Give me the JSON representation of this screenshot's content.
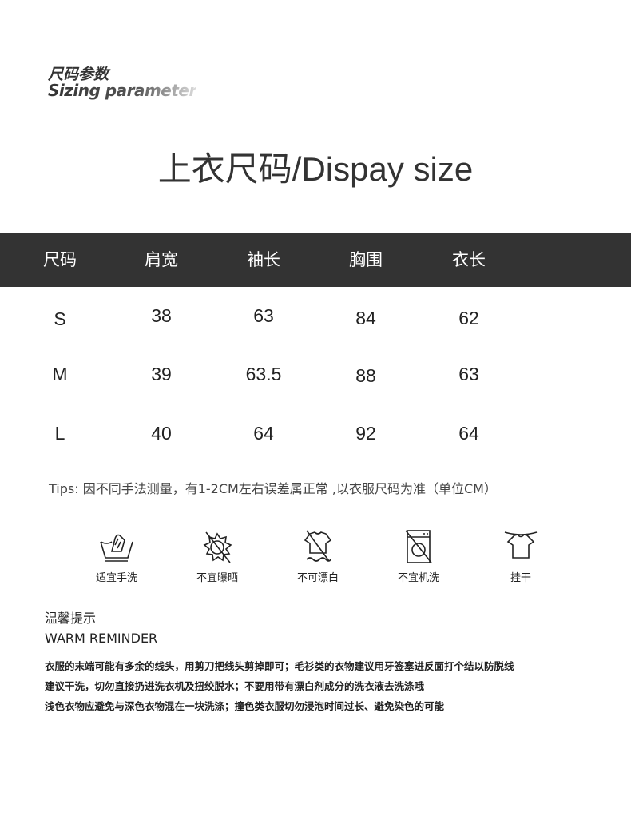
{
  "header": {
    "label_cn": "尺码参数",
    "label_en": "Sizing parameter"
  },
  "title": "上衣尺码/Dispay size",
  "table": {
    "columns": [
      "尺码",
      "肩宽",
      "袖长",
      "胸围",
      "衣长"
    ],
    "rows": [
      [
        "S",
        "38",
        "63",
        "84",
        "62"
      ],
      [
        "M",
        "39",
        "63.5",
        "88",
        "63"
      ],
      [
        "L",
        "40",
        "64",
        "92",
        "64"
      ]
    ]
  },
  "tips": "Tips: 因不同手法测量，有1-2CM左右误差属正常 ,以衣服尺码为准（单位CM）",
  "care": [
    {
      "icon": "hand-wash-icon",
      "label": "适宜手洗"
    },
    {
      "icon": "no-sun-icon",
      "label": "不宜曝晒"
    },
    {
      "icon": "no-bleach-icon",
      "label": "不可漂白"
    },
    {
      "icon": "no-machine-wash-icon",
      "label": "不宜机洗"
    },
    {
      "icon": "hang-dry-icon",
      "label": "挂干"
    }
  ],
  "reminder": {
    "title_cn": "温馨提示",
    "title_en": "WARM REMINDER",
    "lines": [
      "衣服的末端可能有多余的线头，用剪刀把线头剪掉即可；毛衫类的衣物建议用牙签塞进反面打个结以防脱线",
      "建议干洗，切勿直接扔进洗衣机及扭绞脱水；不要用带有漂白剂成分的洗衣液去洗涤哦",
      "浅色衣物应避免与深色衣物混在一块洗涤；撞色类衣服切勿浸泡时间过长、避免染色的可能"
    ]
  }
}
